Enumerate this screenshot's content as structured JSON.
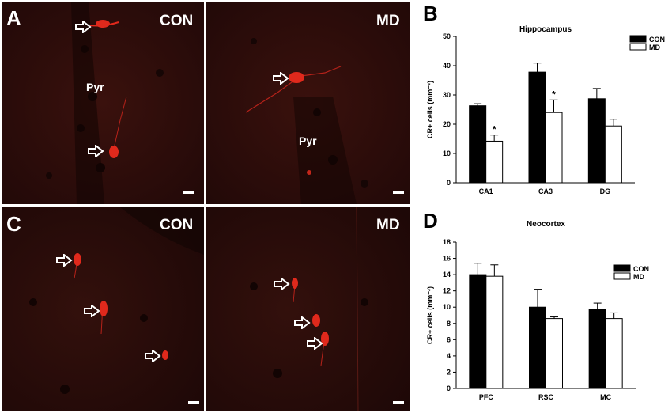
{
  "panels": {
    "A": {
      "label": "A",
      "left_condition": "CON",
      "right_condition": "MD",
      "left_region": "Pyr",
      "right_region": "Pyr"
    },
    "B": {
      "label": "B"
    },
    "C": {
      "label": "C",
      "left_condition": "CON",
      "right_condition": "MD"
    },
    "D": {
      "label": "D"
    }
  },
  "colors": {
    "con": "#000000",
    "md": "#ffffff",
    "tissue": "#2a0c0a",
    "neuron": "#e0291c",
    "arrow": "#ffffff"
  },
  "chart_data": [
    {
      "type": "bar",
      "title": "Hippocampus",
      "categories": [
        "CA1",
        "CA3",
        "DG"
      ],
      "series": [
        {
          "name": "CON",
          "values": [
            26.3,
            37.8,
            28.7
          ],
          "errors": [
            0.7,
            3.1,
            3.5
          ]
        },
        {
          "name": "MD",
          "values": [
            14.2,
            24.0,
            19.4
          ],
          "errors": [
            2.1,
            4.3,
            2.3
          ]
        }
      ],
      "ylabel": "CR+ cells (mm⁻²)",
      "ylim": [
        0,
        50
      ],
      "yticks": [
        "0",
        "10",
        "20",
        "30",
        "40",
        "50"
      ],
      "significance": [
        "*",
        "*",
        ""
      ],
      "legend_position": "top-right"
    },
    {
      "type": "bar",
      "title": "Neocortex",
      "categories": [
        "PFC",
        "RSC",
        "MC"
      ],
      "series": [
        {
          "name": "CON",
          "values": [
            14.0,
            10.0,
            9.7
          ],
          "errors": [
            1.4,
            2.2,
            0.8
          ]
        },
        {
          "name": "MD",
          "values": [
            13.8,
            8.6,
            8.6
          ],
          "errors": [
            1.4,
            0.2,
            0.7
          ]
        }
      ],
      "ylabel": "CR+ cells (mm⁻²)",
      "ylim": [
        0,
        18
      ],
      "yticks": [
        "0",
        "2",
        "4",
        "6",
        "8",
        "10",
        "12",
        "14",
        "16",
        "18"
      ],
      "legend_position": "right"
    }
  ]
}
